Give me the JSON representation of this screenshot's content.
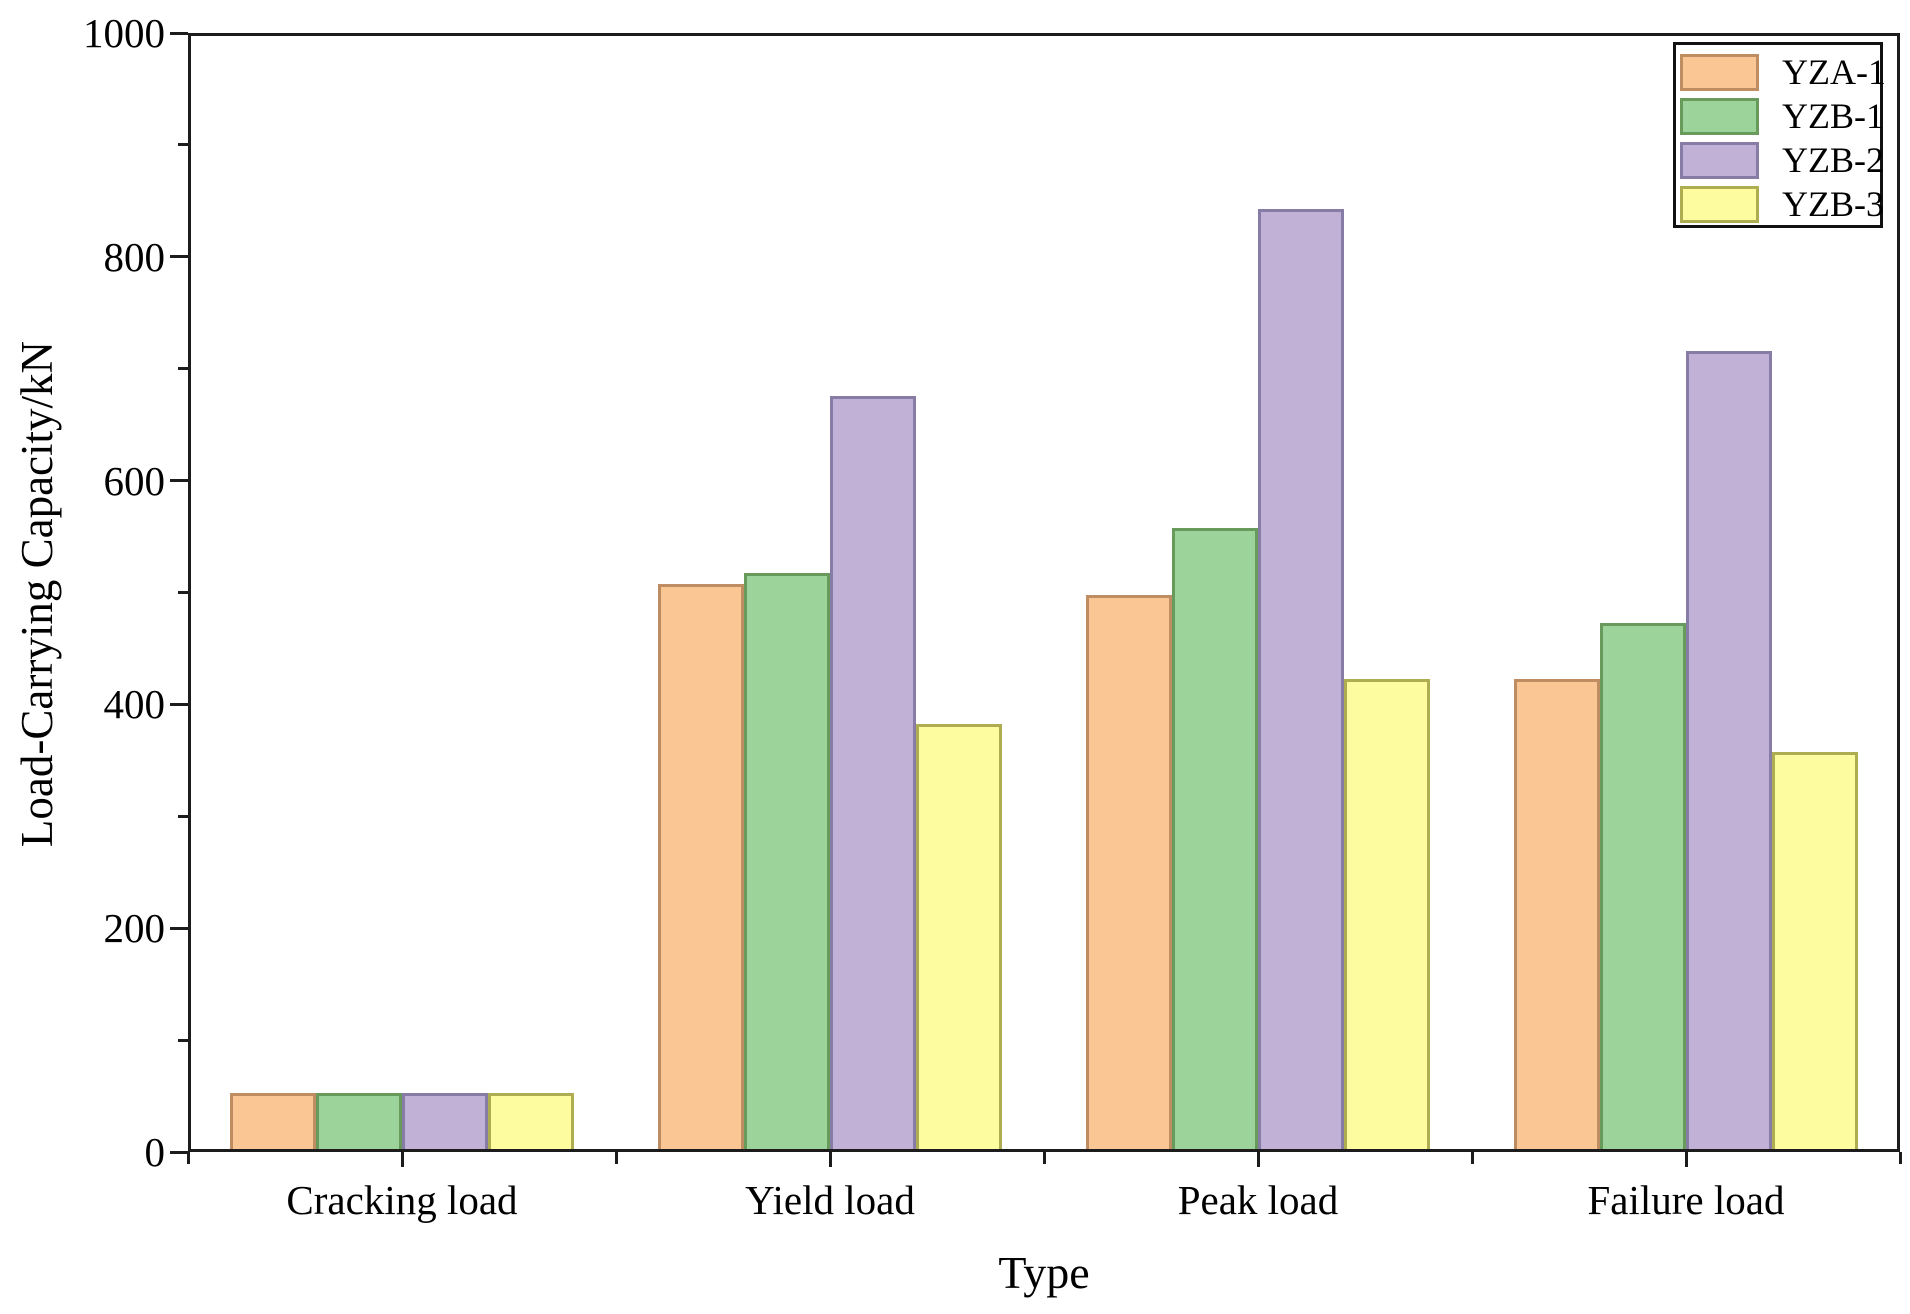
{
  "chart_data": {
    "type": "bar",
    "title": "",
    "xlabel": "Type",
    "ylabel": "Load-Carrying Capacity/kN",
    "categories": [
      "Cracking load",
      "Yield load",
      "Peak load",
      "Failure load"
    ],
    "series": [
      {
        "name": "YZA-1",
        "fill": "#FAC694",
        "edge": "#BE8E62",
        "values": [
          50,
          505,
          495,
          420
        ]
      },
      {
        "name": "YZB-1",
        "fill": "#9CD39A",
        "edge": "#679A5B",
        "values": [
          50,
          515,
          555,
          470
        ]
      },
      {
        "name": "YZB-2",
        "fill": "#C1B1D7",
        "edge": "#877CA6",
        "values": [
          50,
          673,
          840,
          713
        ]
      },
      {
        "name": "YZB-3",
        "fill": "#FDFDA0",
        "edge": "#AFAD52",
        "values": [
          50,
          380,
          420,
          355
        ]
      }
    ],
    "ylim": [
      0,
      1000
    ],
    "y_major_ticks": [
      0,
      200,
      400,
      600,
      800,
      1000
    ],
    "y_minor_ticks": [
      100,
      300,
      500,
      700,
      900
    ],
    "grid": false,
    "legend_position": "top-right",
    "axis_color": "#1c1c1c",
    "text_color": "#000000",
    "background": "#ffffff"
  }
}
